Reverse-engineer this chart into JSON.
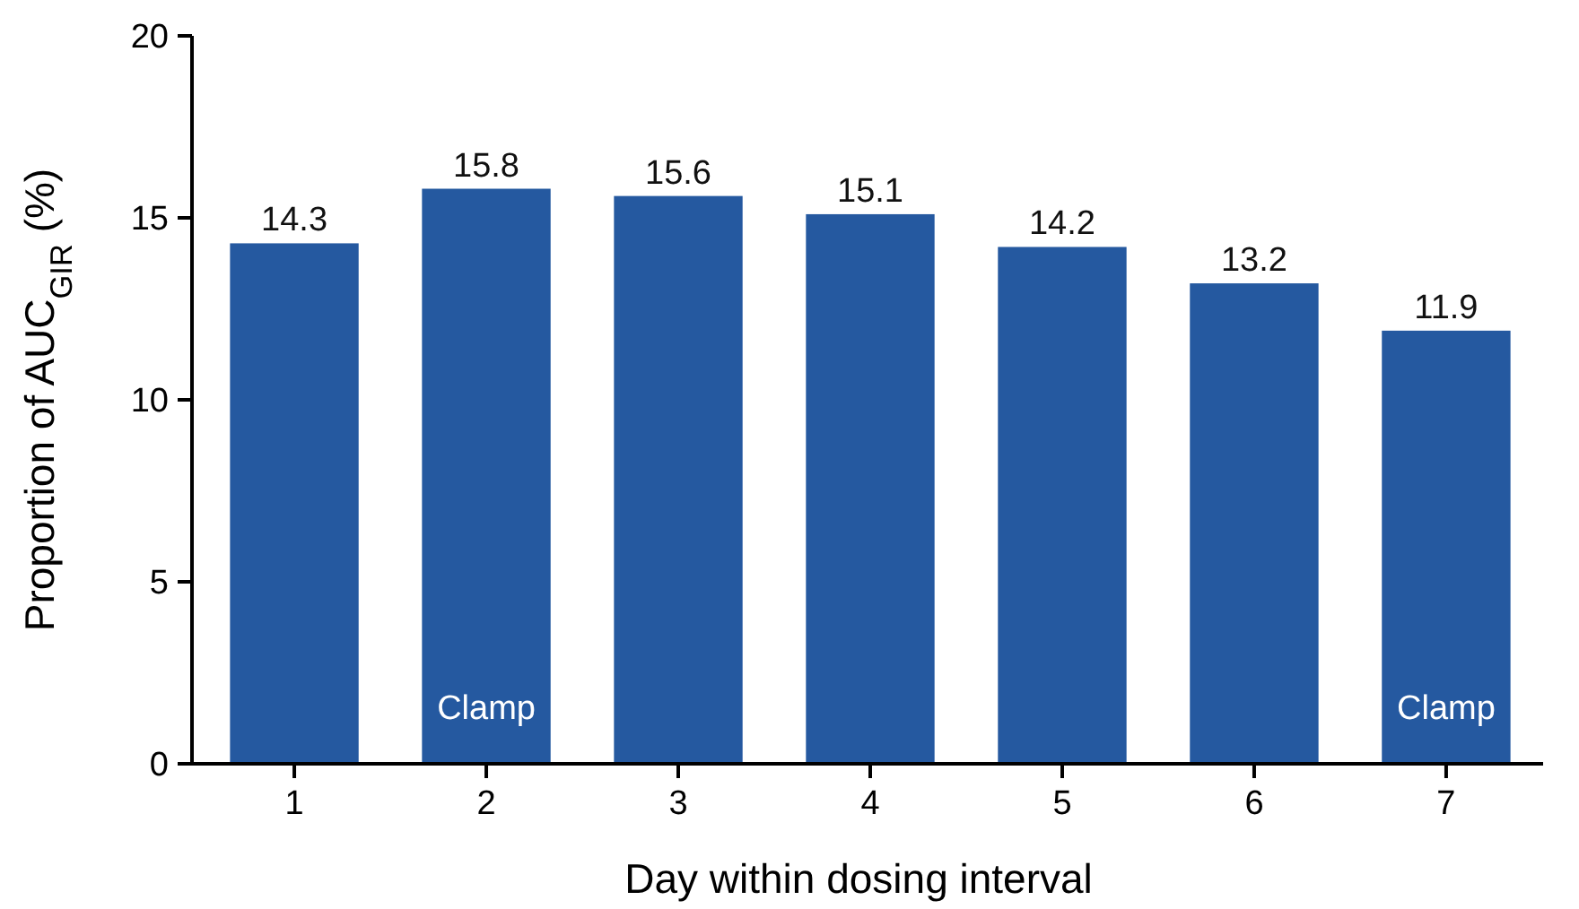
{
  "chart_data": {
    "type": "bar",
    "xlabel": "Day within dosing interval",
    "ylabel": "Proportion of AUC$_{GIR}$ (%)",
    "categories": [
      "1",
      "2",
      "3",
      "4",
      "5",
      "6",
      "7"
    ],
    "values": [
      14.3,
      15.8,
      15.6,
      15.1,
      14.2,
      13.2,
      11.9
    ],
    "color": "#2559a0",
    "data_labels": true,
    "ylim": [
      0,
      20
    ],
    "yticks": [
      0,
      5,
      10,
      15,
      20
    ],
    "grid": false,
    "annotations": [
      "Clamp",
      "Clamp"
    ]
  }
}
